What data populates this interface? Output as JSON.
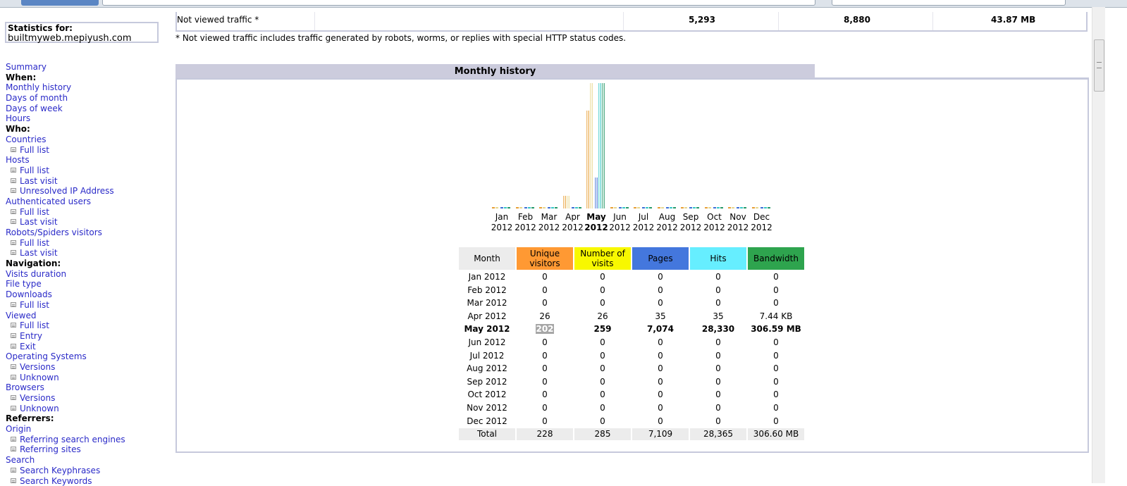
{
  "sidebar": {
    "stats_label": "Statistics for:",
    "site": "builtmyweb.mepiyush.com",
    "menu": [
      {
        "type": "link",
        "label": "Summary"
      },
      {
        "type": "head",
        "label": "When:"
      },
      {
        "type": "link",
        "label": "Monthly history"
      },
      {
        "type": "link",
        "label": "Days of month"
      },
      {
        "type": "link",
        "label": "Days of week"
      },
      {
        "type": "link",
        "label": "Hours"
      },
      {
        "type": "head",
        "label": "Who:"
      },
      {
        "type": "link",
        "label": "Countries"
      },
      {
        "type": "sub",
        "label": "Full list"
      },
      {
        "type": "link",
        "label": "Hosts"
      },
      {
        "type": "sub",
        "label": "Full list"
      },
      {
        "type": "sub",
        "label": "Last visit"
      },
      {
        "type": "sub",
        "label": "Unresolved IP Address"
      },
      {
        "type": "link",
        "label": "Authenticated users"
      },
      {
        "type": "sub",
        "label": "Full list"
      },
      {
        "type": "sub",
        "label": "Last visit"
      },
      {
        "type": "link",
        "label": "Robots/Spiders visitors"
      },
      {
        "type": "sub",
        "label": "Full list"
      },
      {
        "type": "sub",
        "label": "Last visit"
      },
      {
        "type": "head",
        "label": "Navigation:"
      },
      {
        "type": "link",
        "label": "Visits duration"
      },
      {
        "type": "link",
        "label": "File type"
      },
      {
        "type": "link",
        "label": "Downloads"
      },
      {
        "type": "sub",
        "label": "Full list"
      },
      {
        "type": "link",
        "label": "Viewed"
      },
      {
        "type": "sub",
        "label": "Full list"
      },
      {
        "type": "sub",
        "label": "Entry"
      },
      {
        "type": "sub",
        "label": "Exit"
      },
      {
        "type": "link",
        "label": "Operating Systems"
      },
      {
        "type": "sub",
        "label": "Versions"
      },
      {
        "type": "sub",
        "label": "Unknown"
      },
      {
        "type": "link",
        "label": "Browsers"
      },
      {
        "type": "sub",
        "label": "Versions"
      },
      {
        "type": "sub",
        "label": "Unknown"
      },
      {
        "type": "head",
        "label": "Referrers:"
      },
      {
        "type": "link",
        "label": "Origin"
      },
      {
        "type": "sub",
        "label": "Referring search engines"
      },
      {
        "type": "sub",
        "label": "Referring sites"
      },
      {
        "type": "link",
        "label": "Search"
      },
      {
        "type": "sub",
        "label": "Search Keyphrases"
      },
      {
        "type": "sub",
        "label": "Search Keywords"
      }
    ]
  },
  "traffic": {
    "label": "Not viewed traffic *",
    "pages": "5,293",
    "hits": "8,880",
    "bandwidth": "43.87 MB",
    "note": "* Not viewed traffic includes traffic generated by robots, worms, or replies with special HTTP status codes."
  },
  "history": {
    "title": "Monthly history",
    "headers": {
      "month": "Month",
      "visitors": "Unique visitors",
      "visits": "Number of visits",
      "pages": "Pages",
      "hits": "Hits",
      "bandwidth": "Bandwidth"
    },
    "header_colors": {
      "month": "#ececec",
      "visitors": "#ff9933",
      "visits": "#f8f800",
      "pages": "#4477dd",
      "hits": "#66eeff",
      "bandwidth": "#2ea44e"
    },
    "rows": [
      {
        "month": "Jan 2012",
        "visitors": "0",
        "visits": "0",
        "pages": "0",
        "hits": "0",
        "bandwidth": "0"
      },
      {
        "month": "Feb 2012",
        "visitors": "0",
        "visits": "0",
        "pages": "0",
        "hits": "0",
        "bandwidth": "0"
      },
      {
        "month": "Mar 2012",
        "visitors": "0",
        "visits": "0",
        "pages": "0",
        "hits": "0",
        "bandwidth": "0"
      },
      {
        "month": "Apr 2012",
        "visitors": "26",
        "visits": "26",
        "pages": "35",
        "hits": "35",
        "bandwidth": "7.44 KB"
      },
      {
        "month": "May 2012",
        "visitors": "202",
        "visits": "259",
        "pages": "7,074",
        "hits": "28,330",
        "bandwidth": "306.59 MB",
        "current": true
      },
      {
        "month": "Jun 2012",
        "visitors": "0",
        "visits": "0",
        "pages": "0",
        "hits": "0",
        "bandwidth": "0"
      },
      {
        "month": "Jul 2012",
        "visitors": "0",
        "visits": "0",
        "pages": "0",
        "hits": "0",
        "bandwidth": "0"
      },
      {
        "month": "Aug 2012",
        "visitors": "0",
        "visits": "0",
        "pages": "0",
        "hits": "0",
        "bandwidth": "0"
      },
      {
        "month": "Sep 2012",
        "visitors": "0",
        "visits": "0",
        "pages": "0",
        "hits": "0",
        "bandwidth": "0"
      },
      {
        "month": "Oct 2012",
        "visitors": "0",
        "visits": "0",
        "pages": "0",
        "hits": "0",
        "bandwidth": "0"
      },
      {
        "month": "Nov 2012",
        "visitors": "0",
        "visits": "0",
        "pages": "0",
        "hits": "0",
        "bandwidth": "0"
      },
      {
        "month": "Dec 2012",
        "visitors": "0",
        "visits": "0",
        "pages": "0",
        "hits": "0",
        "bandwidth": "0"
      }
    ],
    "total": {
      "label": "Total",
      "visitors": "228",
      "visits": "285",
      "pages": "7,109",
      "hits": "28,365",
      "bandwidth": "306.60 MB"
    }
  },
  "chart_data": {
    "type": "bar",
    "categories": [
      "Jan",
      "Feb",
      "Mar",
      "Apr",
      "May",
      "Jun",
      "Jul",
      "Aug",
      "Sep",
      "Oct",
      "Nov",
      "Dec"
    ],
    "years": [
      "2012",
      "2012",
      "2012",
      "2012",
      "2012",
      "2012",
      "2012",
      "2012",
      "2012",
      "2012",
      "2012",
      "2012"
    ],
    "current_month": "May",
    "series": [
      {
        "name": "Unique visitors",
        "color": "#e8a038",
        "values": [
          0,
          0,
          0,
          26,
          202,
          0,
          0,
          0,
          0,
          0,
          0,
          0
        ]
      },
      {
        "name": "Number of visits",
        "color": "#e8d890",
        "values": [
          0,
          0,
          0,
          26,
          259,
          0,
          0,
          0,
          0,
          0,
          0,
          0
        ]
      },
      {
        "name": "Pages",
        "color": "#3f6fd8",
        "values": [
          0,
          0,
          0,
          35,
          7074,
          0,
          0,
          0,
          0,
          0,
          0,
          0
        ]
      },
      {
        "name": "Hits",
        "color": "#38c8c8",
        "values": [
          0,
          0,
          0,
          35,
          28330,
          0,
          0,
          0,
          0,
          0,
          0,
          0
        ]
      },
      {
        "name": "Bandwidth",
        "color": "#2a9a6a",
        "values": [
          0,
          0,
          0,
          0.0073,
          306.59,
          0,
          0,
          0,
          0,
          0,
          0,
          0
        ]
      }
    ]
  }
}
